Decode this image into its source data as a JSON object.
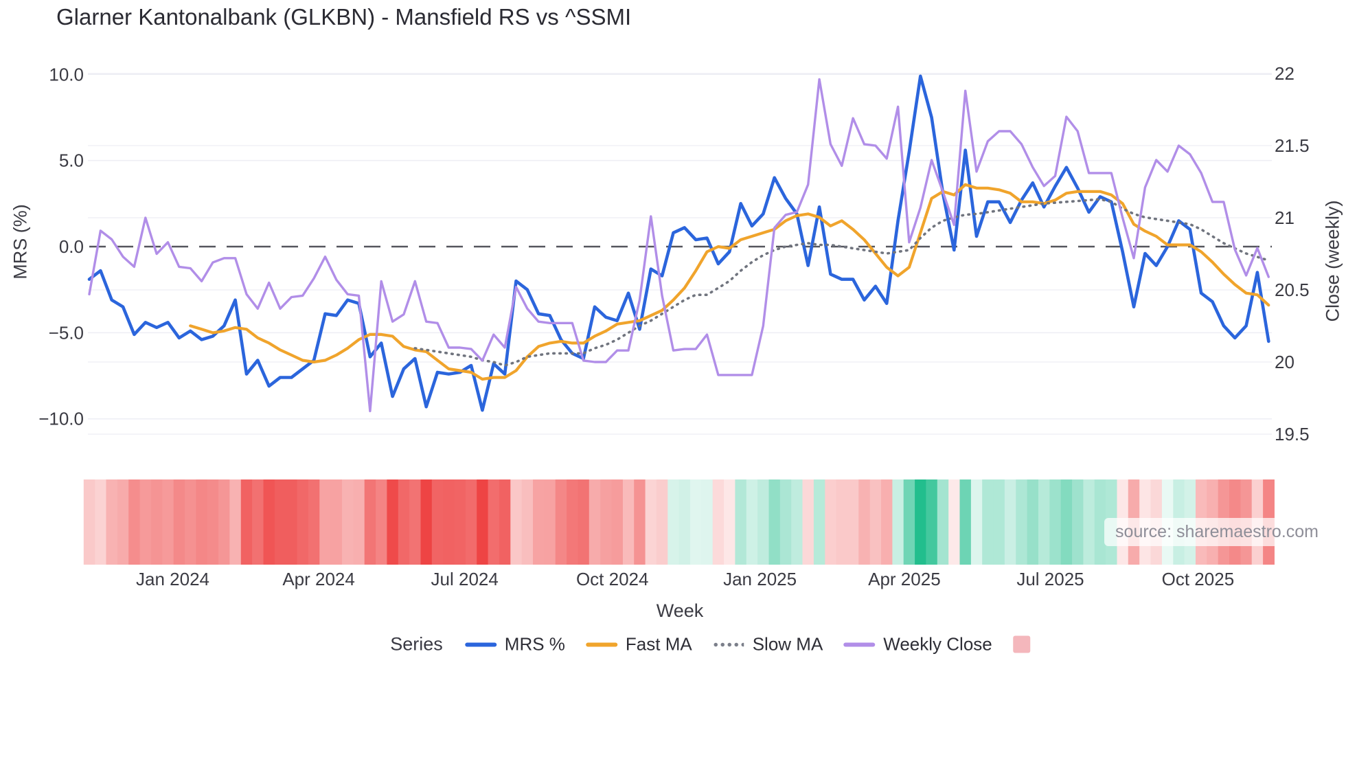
{
  "title": "Glarner Kantonalbank (GLKBN) - Mansfield RS vs ^SSMI",
  "watermark": "source: sharemaestro.com",
  "left_axis": {
    "title": "MRS (%)",
    "ticks": [
      {
        "label": "10.0",
        "value": 10
      },
      {
        "label": "5.0",
        "value": 5
      },
      {
        "label": "0.0",
        "value": 0
      },
      {
        "label": "−5.0",
        "value": -5
      },
      {
        "label": "−10.0",
        "value": -10
      }
    ]
  },
  "right_axis": {
    "title": "Close (weekly)",
    "ticks": [
      {
        "label": "22",
        "value": 22
      },
      {
        "label": "21.5",
        "value": 21.5
      },
      {
        "label": "21",
        "value": 21
      },
      {
        "label": "20.5",
        "value": 20.5
      },
      {
        "label": "20",
        "value": 20
      },
      {
        "label": "19.5",
        "value": 19.5
      }
    ]
  },
  "x_axis": {
    "title": "Week",
    "ticks": [
      {
        "label": "Jan 2024",
        "index": 7.43
      },
      {
        "label": "Apr 2024",
        "index": 20.43
      },
      {
        "label": "Jul 2024",
        "index": 33.43
      },
      {
        "label": "Oct 2024",
        "index": 46.57
      },
      {
        "label": "Jan 2025",
        "index": 59.71
      },
      {
        "label": "Apr 2025",
        "index": 72.57
      },
      {
        "label": "Jul 2025",
        "index": 85.57
      },
      {
        "label": "Oct 2025",
        "index": 98.71
      }
    ]
  },
  "legend": {
    "label": "Series",
    "items": [
      {
        "name": "MRS %",
        "type": "line",
        "color": "#2b65dc"
      },
      {
        "name": "Fast MA",
        "type": "line",
        "color": "#f0a42c"
      },
      {
        "name": "Slow MA",
        "type": "dotted",
        "color": "#7b7f8a"
      },
      {
        "name": "Weekly Close",
        "type": "line",
        "color": "#b18ee8"
      },
      {
        "name": "",
        "type": "square",
        "color": "#f4b7bc"
      }
    ]
  },
  "chart_data": {
    "type": "line",
    "title": "Glarner Kantonalbank (GLKBN) - Mansfield RS vs ^SSMI",
    "xlabel": "Week",
    "ylabel_left": "MRS (%)",
    "ylabel_right": "Close (weekly)",
    "left_range": [
      -10,
      10
    ],
    "right_range": [
      19.5,
      22
    ],
    "grid": true,
    "legend_position": "bottom",
    "zero_line": 0,
    "weeks": 106,
    "series": [
      {
        "name": "MRS %",
        "axis": "left",
        "color": "#2b65dc",
        "style": "solid",
        "width": 4.6,
        "start_index": 0,
        "values": [
          -1.9,
          -1.4,
          -3.1,
          -3.5,
          -5.1,
          -4.4,
          -4.7,
          -4.4,
          -5.3,
          -4.9,
          -5.4,
          -5.2,
          -4.6,
          -3.1,
          -7.4,
          -6.6,
          -8.1,
          -7.6,
          -7.6,
          -7.1,
          -6.6,
          -3.9,
          -4.0,
          -3.1,
          -3.3,
          -6.4,
          -5.6,
          -8.7,
          -7.1,
          -6.5,
          -9.3,
          -7.3,
          -7.4,
          -7.3,
          -6.9,
          -9.5,
          -6.8,
          -7.4,
          -2.0,
          -2.5,
          -3.9,
          -4.0,
          -5.4,
          -6.2,
          -6.5,
          -3.5,
          -4.1,
          -4.3,
          -2.7,
          -4.8,
          -1.3,
          -1.7,
          0.8,
          1.1,
          0.4,
          0.5,
          -1.0,
          -0.3,
          2.5,
          1.2,
          1.9,
          4.0,
          2.8,
          1.9,
          -1.1,
          2.3,
          -1.6,
          -1.9,
          -1.9,
          -3.1,
          -2.3,
          -3.3,
          1.5,
          5.5,
          9.9,
          7.5,
          3.1,
          -0.2,
          5.6,
          0.6,
          2.6,
          2.6,
          1.4,
          2.7,
          3.7,
          2.3,
          3.5,
          4.6,
          3.4,
          2.0,
          2.9,
          2.6,
          -0.3,
          -3.5,
          -0.4,
          -1.1,
          0.0,
          1.5,
          1.0,
          -2.7,
          -3.2,
          -4.6,
          -5.3,
          -4.6,
          -1.5,
          -5.5
        ]
      },
      {
        "name": "Fast MA",
        "axis": "left",
        "color": "#f0a42c",
        "style": "solid",
        "width": 4.2,
        "start_index": 9,
        "values": [
          -4.6,
          -4.8,
          -5.0,
          -4.9,
          -4.7,
          -4.8,
          -5.3,
          -5.6,
          -6.0,
          -6.3,
          -6.6,
          -6.7,
          -6.6,
          -6.3,
          -5.9,
          -5.4,
          -5.1,
          -5.1,
          -5.2,
          -5.8,
          -6.0,
          -6.1,
          -6.6,
          -7.1,
          -7.2,
          -7.3,
          -7.7,
          -7.6,
          -7.6,
          -7.2,
          -6.4,
          -5.8,
          -5.6,
          -5.5,
          -5.6,
          -5.6,
          -5.2,
          -4.9,
          -4.5,
          -4.4,
          -4.3,
          -4.0,
          -3.7,
          -3.1,
          -2.4,
          -1.4,
          -0.3,
          0.0,
          -0.1,
          0.4,
          0.6,
          0.8,
          1.0,
          1.5,
          1.8,
          1.9,
          1.7,
          1.2,
          1.5,
          1.0,
          0.4,
          -0.4,
          -1.2,
          -1.7,
          -1.2,
          0.8,
          2.8,
          3.2,
          3.0,
          3.6,
          3.4,
          3.4,
          3.3,
          3.1,
          2.6,
          2.6,
          2.5,
          2.7,
          3.1,
          3.2,
          3.2,
          3.2,
          3.0,
          2.5,
          1.3,
          0.9,
          0.6,
          0.1,
          0.1,
          0.1,
          -0.3,
          -0.9,
          -1.6,
          -2.2,
          -2.7,
          -2.8,
          -3.4
        ]
      },
      {
        "name": "Slow MA",
        "axis": "left",
        "color": "#70747e",
        "style": "dotted",
        "width": 3.6,
        "start_index": 29,
        "values": [
          -5.9,
          -6.0,
          -6.1,
          -6.2,
          -6.3,
          -6.4,
          -6.6,
          -6.7,
          -6.9,
          -6.7,
          -6.4,
          -6.3,
          -6.2,
          -6.2,
          -6.2,
          -6.2,
          -5.9,
          -5.7,
          -5.4,
          -5.0,
          -4.6,
          -4.3,
          -3.9,
          -3.5,
          -3.1,
          -2.8,
          -2.8,
          -2.4,
          -2.0,
          -1.4,
          -0.9,
          -0.5,
          -0.2,
          0.0,
          0.1,
          0.2,
          0.1,
          0.1,
          0.0,
          -0.1,
          -0.2,
          -0.3,
          -0.4,
          -0.3,
          -0.2,
          0.5,
          1.1,
          1.5,
          1.7,
          1.85,
          1.9,
          2.0,
          2.1,
          2.2,
          2.3,
          2.4,
          2.5,
          2.55,
          2.6,
          2.65,
          2.7,
          2.75,
          2.6,
          2.2,
          1.9,
          1.7,
          1.6,
          1.5,
          1.4,
          1.3,
          1.0,
          0.6,
          0.2,
          -0.1,
          -0.4,
          -0.6,
          -0.8
        ]
      },
      {
        "name": "Weekly Close",
        "axis": "right",
        "color": "#b18ee8",
        "style": "solid",
        "width": 3.4,
        "start_index": 0,
        "values": [
          20.47,
          20.91,
          20.85,
          20.73,
          20.66,
          21.0,
          20.75,
          20.83,
          20.66,
          20.65,
          20.56,
          20.69,
          20.72,
          20.72,
          20.47,
          20.37,
          20.55,
          20.37,
          20.45,
          20.46,
          20.58,
          20.73,
          20.57,
          20.47,
          20.46,
          19.66,
          20.56,
          20.28,
          20.33,
          20.56,
          20.28,
          20.27,
          20.1,
          20.1,
          20.09,
          20.01,
          20.19,
          20.1,
          20.52,
          20.37,
          20.28,
          20.27,
          20.27,
          20.27,
          20.01,
          20.0,
          20.0,
          20.08,
          20.08,
          20.43,
          21.01,
          20.46,
          20.08,
          20.09,
          20.09,
          20.19,
          19.91,
          19.91,
          19.91,
          19.91,
          20.25,
          20.93,
          21.02,
          21.04,
          21.23,
          21.96,
          21.51,
          21.36,
          21.69,
          21.51,
          21.5,
          21.41,
          21.77,
          20.83,
          21.07,
          21.4,
          21.18,
          20.95,
          21.88,
          21.32,
          21.53,
          21.6,
          21.6,
          21.51,
          21.35,
          21.22,
          21.29,
          21.7,
          21.6,
          21.31,
          21.31,
          21.31,
          21.0,
          20.72,
          21.21,
          21.4,
          21.32,
          21.5,
          21.44,
          21.31,
          21.11,
          21.11,
          20.78,
          20.6,
          20.79,
          20.59
        ]
      }
    ],
    "heatmap": {
      "source_series": "MRS %",
      "neg_color": "#ee4444",
      "pos_color": "#22be8d",
      "max_abs": 9
    },
    "colors": {
      "grid": "#edeef4",
      "zero_line": "#54555d",
      "tick_text": "#3b3b43"
    }
  }
}
